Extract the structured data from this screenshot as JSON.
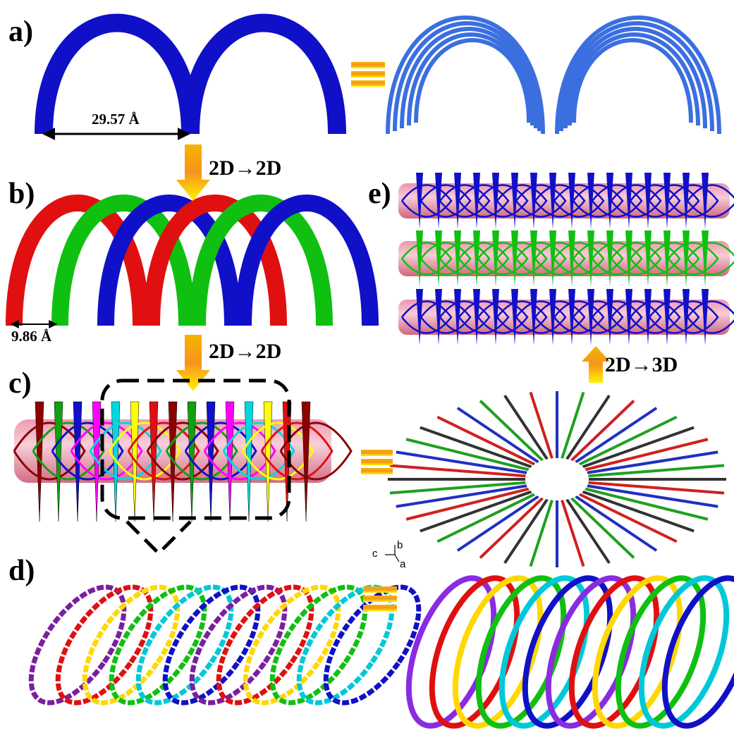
{
  "panels": [
    {
      "label": "a)"
    },
    {
      "label": "b)"
    },
    {
      "label": "c)"
    },
    {
      "label": "d)"
    },
    {
      "label": "e)"
    }
  ],
  "measurements": {
    "arch_span": "29.57 Å",
    "arch_offset": "9.86 Å"
  },
  "transitions": [
    {
      "label": "2D→2D"
    },
    {
      "label": "2D→2D"
    },
    {
      "label": "2D→3D"
    }
  ],
  "axis_labels": [
    "c",
    "b",
    "a"
  ]
}
